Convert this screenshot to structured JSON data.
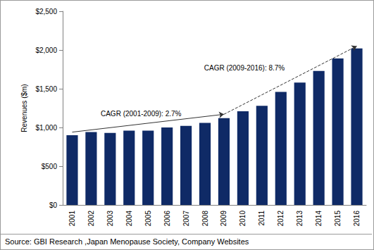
{
  "chart_data": {
    "type": "bar",
    "categories": [
      "2001",
      "2002",
      "2003",
      "2004",
      "2005",
      "2006",
      "2007",
      "2008",
      "2009",
      "2010",
      "2011",
      "2012",
      "2013",
      "2014",
      "2015",
      "2016"
    ],
    "values": [
      900,
      940,
      930,
      960,
      960,
      1000,
      1020,
      1060,
      1120,
      1210,
      1280,
      1460,
      1580,
      1730,
      1890,
      2020
    ],
    "color": "#0f2a66",
    "ylabel": "Revenues ($m)",
    "ylim": [
      0,
      2500
    ],
    "yticks": [
      {
        "value": 0,
        "label": "$0"
      },
      {
        "value": 500,
        "label": "$500"
      },
      {
        "value": 1000,
        "label": "$1,000"
      },
      {
        "value": 1500,
        "label": "$1,500"
      },
      {
        "value": 2000,
        "label": "$2,000"
      },
      {
        "value": 2500,
        "label": "$2,500"
      }
    ],
    "grid": false,
    "annotations": [
      {
        "text": "CAGR (2001-2009): 2.7%",
        "from": [
          "2001",
          940
        ],
        "to": [
          "2009",
          1170
        ],
        "line_style": "solid"
      },
      {
        "text": "CAGR (2009-2016): 8.7%",
        "from": [
          "2009",
          1170
        ],
        "to": [
          "2016",
          2050
        ],
        "line_style": "dashed"
      }
    ],
    "source": "Source: GBI Research ,Japan Menopause Society, Company Websites"
  }
}
